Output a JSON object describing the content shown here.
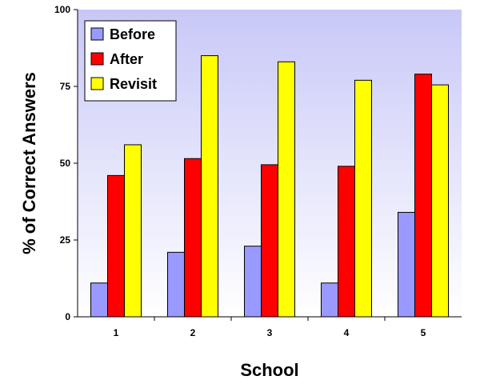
{
  "chart_data": {
    "type": "bar",
    "xlabel": "School",
    "ylabel": "% of Correct Answers",
    "categories": [
      "1",
      "2",
      "3",
      "4",
      "5"
    ],
    "ylim": [
      0,
      100
    ],
    "yticks": [
      "0",
      "25",
      "50",
      "75",
      "100"
    ],
    "grid": false,
    "legend_position": "top-left",
    "series": [
      {
        "name": "Before",
        "color": "#9999ff",
        "values": [
          11,
          21,
          23,
          11,
          34
        ]
      },
      {
        "name": "After",
        "color": "#ff0000",
        "values": [
          46,
          51.5,
          49.5,
          49,
          79
        ]
      },
      {
        "name": "Revisit",
        "color": "#ffff00",
        "values": [
          56,
          85,
          83,
          77,
          75.5
        ]
      }
    ],
    "background_gradient": [
      "#c8c8f8",
      "#ffffff"
    ]
  }
}
